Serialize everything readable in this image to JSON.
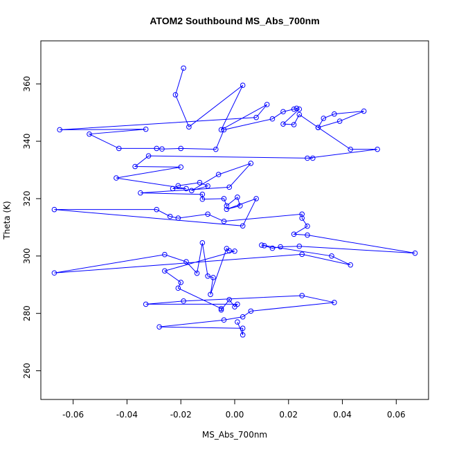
{
  "chart_data": {
    "type": "line",
    "title": "ATOM2 Southbound MS_Abs_700nm",
    "xlabel": "MS_Abs_700nm",
    "ylabel": "Theta (K)",
    "xlim": [
      -0.072,
      0.072
    ],
    "ylim": [
      250,
      375
    ],
    "xticks": [
      -0.06,
      -0.04,
      -0.02,
      0.0,
      0.02,
      0.04,
      0.06
    ],
    "xtick_labels": [
      "-0.06",
      "-0.04",
      "-0.02",
      "0.00",
      "0.02",
      "0.04",
      "0.06"
    ],
    "yticks": [
      260,
      280,
      300,
      320,
      340,
      360
    ],
    "ytick_labels": [
      "260",
      "280",
      "300",
      "320",
      "340",
      "360"
    ],
    "grid": false,
    "color": "#0000ff",
    "series": [
      {
        "points": [
          [
            -0.019,
            365.5
          ],
          [
            -0.022,
            356.2
          ],
          [
            -0.017,
            345.0
          ],
          [
            0.003,
            359.5
          ],
          [
            -0.005,
            344.0
          ],
          [
            0.012,
            352.8
          ],
          [
            0.008,
            348.3
          ],
          [
            -0.065,
            344.0
          ],
          [
            -0.033,
            344.2
          ],
          [
            -0.054,
            342.5
          ],
          [
            -0.043,
            337.5
          ],
          [
            -0.029,
            337.5
          ],
          [
            -0.027,
            337.3
          ],
          [
            -0.02,
            337.5
          ],
          [
            -0.007,
            337.2
          ],
          [
            -0.004,
            344.0
          ],
          [
            0.014,
            347.8
          ],
          [
            0.018,
            350.3
          ],
          [
            0.022,
            351.2
          ],
          [
            0.023,
            351.5
          ],
          [
            0.024,
            351.2
          ],
          [
            0.018,
            346.0
          ],
          [
            0.022,
            345.8
          ],
          [
            0.024,
            349.3
          ],
          [
            0.031,
            344.8
          ],
          [
            0.033,
            348.0
          ],
          [
            0.037,
            349.5
          ],
          [
            0.048,
            350.5
          ],
          [
            0.039,
            347.0
          ],
          [
            0.031,
            344.8
          ],
          [
            0.043,
            337.2
          ],
          [
            0.053,
            337.2
          ],
          [
            0.027,
            334.1
          ],
          [
            0.029,
            334.1
          ],
          [
            -0.032,
            334.9
          ],
          [
            -0.037,
            331.2
          ],
          [
            -0.02,
            331.0
          ],
          [
            -0.044,
            327.2
          ],
          [
            -0.018,
            323.5
          ],
          [
            -0.023,
            323.5
          ],
          [
            -0.021,
            324.5
          ],
          [
            -0.013,
            325.6
          ],
          [
            -0.01,
            324.4
          ],
          [
            -0.016,
            322.8
          ],
          [
            -0.006,
            328.4
          ],
          [
            0.006,
            332.3
          ],
          [
            -0.002,
            324.0
          ],
          [
            -0.035,
            322.0
          ],
          [
            -0.012,
            321.5
          ],
          [
            -0.012,
            319.8
          ],
          [
            -0.004,
            320.0
          ],
          [
            -0.003,
            317.5
          ],
          [
            0.001,
            320.5
          ],
          [
            0.002,
            317.5
          ],
          [
            -0.003,
            316.3
          ],
          [
            0.008,
            320.0
          ],
          [
            0.003,
            310.5
          ],
          [
            -0.067,
            316.2
          ],
          [
            -0.029,
            316.2
          ],
          [
            -0.024,
            313.8
          ],
          [
            -0.021,
            313.2
          ],
          [
            -0.01,
            314.6
          ],
          [
            -0.004,
            312.1
          ],
          [
            0.025,
            314.6
          ],
          [
            0.025,
            313.2
          ],
          [
            0.027,
            310.4
          ],
          [
            0.022,
            307.6
          ],
          [
            0.027,
            307.3
          ],
          [
            0.067,
            301.0
          ],
          [
            0.024,
            303.4
          ],
          [
            0.017,
            303.2
          ],
          [
            0.014,
            302.7
          ],
          [
            0.011,
            303.6
          ],
          [
            0.01,
            303.8
          ],
          [
            0.036,
            300.0
          ],
          [
            0.043,
            296.9
          ],
          [
            0.025,
            300.6
          ],
          [
            -0.067,
            294.1
          ],
          [
            -0.026,
            300.5
          ],
          [
            -0.018,
            298.0
          ],
          [
            -0.014,
            294.0
          ],
          [
            -0.012,
            304.6
          ],
          [
            -0.01,
            293.0
          ],
          [
            -0.008,
            292.5
          ],
          [
            -0.009,
            286.6
          ],
          [
            -0.003,
            302.6
          ],
          [
            -0.002,
            301.8
          ],
          [
            0.0,
            301.7
          ],
          [
            -0.026,
            294.8
          ],
          [
            -0.02,
            290.8
          ],
          [
            -0.021,
            288.8
          ],
          [
            -0.005,
            281.7
          ],
          [
            -0.005,
            281.2
          ],
          [
            -0.002,
            284.8
          ],
          [
            0.0,
            282.3
          ],
          [
            0.001,
            283.2
          ],
          [
            -0.033,
            283.2
          ],
          [
            -0.019,
            284.3
          ],
          [
            0.025,
            286.2
          ],
          [
            0.037,
            283.8
          ],
          [
            0.006,
            280.8
          ],
          [
            0.003,
            278.8
          ],
          [
            -0.004,
            277.7
          ],
          [
            -0.028,
            275.3
          ],
          [
            0.003,
            274.8
          ],
          [
            0.003,
            272.5
          ],
          [
            0.001,
            277.0
          ]
        ]
      }
    ]
  }
}
